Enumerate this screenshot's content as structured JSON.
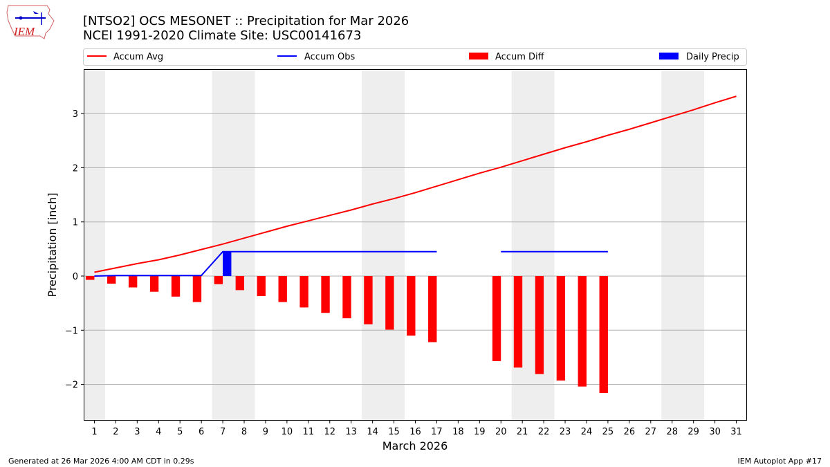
{
  "header": {
    "title": "[NTSO2] OCS MESONET :: Precipitation for Mar 2026",
    "subtitle": "NCEI 1991-2020 Climate Site: USC00141673",
    "logo_text": "IEM"
  },
  "footer": {
    "left": "Generated at 26 Mar 2026 4:00 AM CDT in 0.29s",
    "right": "IEM Autoplot App #17"
  },
  "chart_data": {
    "type": "bar",
    "xlabel": "March 2026",
    "ylabel": "Precipitation [inch]",
    "xlim": [
      0.5,
      31.5
    ],
    "ylim": [
      -2.67,
      3.82
    ],
    "yticks": [
      -2,
      -1,
      0,
      1,
      2,
      3
    ],
    "ytick_labels": [
      "−2",
      "−1",
      "0",
      "1",
      "2",
      "3"
    ],
    "grid": "y",
    "legend": "top, above plot",
    "weekend_shading": [
      [
        0.5,
        1.5
      ],
      [
        6.5,
        8.5
      ],
      [
        13.5,
        15.5
      ],
      [
        20.5,
        22.5
      ],
      [
        27.5,
        29.5
      ]
    ],
    "x": [
      1,
      2,
      3,
      4,
      5,
      6,
      7,
      8,
      9,
      10,
      11,
      12,
      13,
      14,
      15,
      16,
      17,
      18,
      19,
      20,
      21,
      22,
      23,
      24,
      25,
      26,
      27,
      28,
      29,
      30,
      31
    ],
    "series": [
      {
        "name": "Accum Avg",
        "kind": "line",
        "color": "#ff0000",
        "values": [
          0.07,
          0.15,
          0.23,
          0.3,
          0.39,
          0.49,
          0.59,
          0.7,
          0.81,
          0.92,
          1.02,
          1.12,
          1.22,
          1.33,
          1.43,
          1.54,
          1.66,
          1.78,
          1.9,
          2.01,
          2.13,
          2.25,
          2.37,
          2.48,
          2.6,
          2.71,
          2.83,
          2.95,
          3.07,
          3.2,
          3.32
        ]
      },
      {
        "name": "Accum Obs",
        "kind": "line",
        "color": "#0000ff",
        "values": [
          0,
          0.01,
          0.01,
          0.01,
          0.01,
          0.01,
          0.45,
          0.45,
          0.45,
          0.45,
          0.45,
          0.45,
          0.45,
          0.45,
          0.45,
          0.45,
          0.45,
          null,
          null,
          0.45,
          0.45,
          0.45,
          0.45,
          0.45,
          0.45,
          null,
          null,
          null,
          null,
          null,
          null
        ]
      },
      {
        "name": "Accum Diff",
        "kind": "bar",
        "color": "#ff0000",
        "values": [
          -0.07,
          -0.14,
          -0.21,
          -0.29,
          -0.38,
          -0.48,
          -0.15,
          -0.26,
          -0.37,
          -0.48,
          -0.58,
          -0.68,
          -0.78,
          -0.89,
          -0.99,
          -1.1,
          -1.22,
          null,
          null,
          -1.57,
          -1.69,
          -1.81,
          -1.93,
          -2.04,
          -2.16,
          null,
          null,
          null,
          null,
          null,
          null
        ]
      },
      {
        "name": "Daily Precip",
        "kind": "bar",
        "color": "#0000ff",
        "values": [
          0,
          0,
          0,
          0,
          0,
          0,
          0.45,
          0,
          0,
          0,
          0,
          0,
          0,
          0,
          0,
          0,
          0,
          null,
          null,
          0,
          0,
          0,
          0,
          0,
          0,
          null,
          null,
          null,
          null,
          null,
          null
        ]
      }
    ]
  }
}
